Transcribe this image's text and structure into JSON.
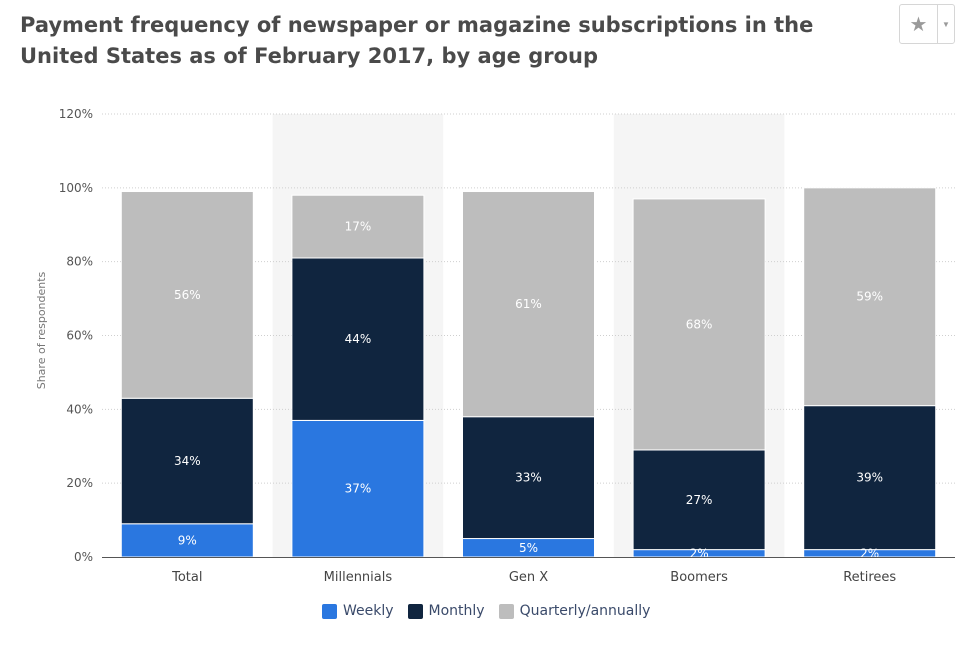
{
  "title": "Payment frequency of newspaper or magazine subscriptions in the United States as of February 2017, by age group",
  "favorite": {
    "icon": "star-icon",
    "dropdown_icon": "caret-down-icon"
  },
  "colors": {
    "weekly": "#2a77e0",
    "monthly": "#10253f",
    "quarterly": "#bdbdbd",
    "band": "#f5f5f5"
  },
  "chart_data": {
    "type": "bar",
    "stacked": true,
    "categories": [
      "Total",
      "Millennials",
      "Gen X",
      "Boomers",
      "Retirees"
    ],
    "series": [
      {
        "name": "Weekly",
        "values": [
          9,
          37,
          5,
          2,
          2
        ],
        "labels": [
          "9%",
          "37%",
          "5%",
          "2%",
          "2%"
        ]
      },
      {
        "name": "Monthly",
        "values": [
          34,
          44,
          33,
          27,
          39
        ],
        "labels": [
          "34%",
          "44%",
          "33%",
          "27%",
          "39%"
        ]
      },
      {
        "name": "Quarterly/annually",
        "values": [
          56,
          17,
          61,
          68,
          59
        ],
        "labels": [
          "56%",
          "17%",
          "61%",
          "68%",
          "59%"
        ]
      }
    ],
    "ylabel": "Share of respondents",
    "xlabel": "",
    "ylim": [
      0,
      120
    ],
    "yticks": [
      0,
      20,
      40,
      60,
      80,
      100,
      120
    ],
    "ytick_labels": [
      "0%",
      "20%",
      "40%",
      "60%",
      "80%",
      "100%",
      "120%"
    ],
    "grid": true,
    "legend_position": "bottom"
  }
}
